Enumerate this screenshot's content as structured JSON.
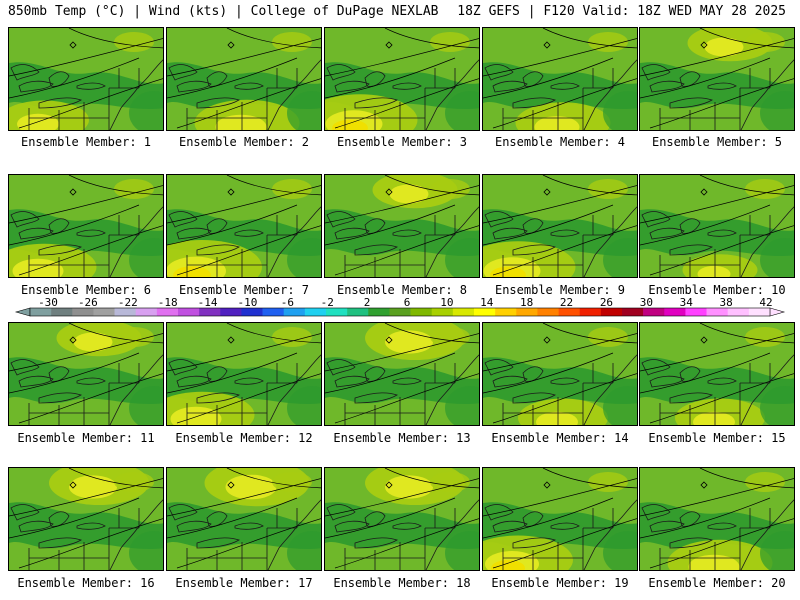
{
  "header": {
    "left": "850mb Temp (°C) | Wind (kts) | College of DuPage NEXLAB",
    "right": "18Z GEFS | F120 Valid: 18Z WED MAY 28 2025"
  },
  "panels": [
    {
      "label": "Ensemble Member: 1",
      "warmth": 0.3,
      "warm_spot": "southwest"
    },
    {
      "label": "Ensemble Member: 2",
      "warmth": 0.45,
      "warm_spot": "south"
    },
    {
      "label": "Ensemble Member: 3",
      "warmth": 0.55,
      "warm_spot": "southwest"
    },
    {
      "label": "Ensemble Member: 4",
      "warmth": 0.35,
      "warm_spot": "south"
    },
    {
      "label": "Ensemble Member: 5",
      "warmth": 0.25,
      "warm_spot": "north"
    },
    {
      "label": "Ensemble Member: 6",
      "warmth": 0.45,
      "warm_spot": "southwest"
    },
    {
      "label": "Ensemble Member: 7",
      "warmth": 0.6,
      "warm_spot": "southwest"
    },
    {
      "label": "Ensemble Member: 8",
      "warmth": 0.25,
      "warm_spot": "north"
    },
    {
      "label": "Ensemble Member: 9",
      "warmth": 0.55,
      "warm_spot": "southwest"
    },
    {
      "label": "Ensemble Member: 10",
      "warmth": 0.15,
      "warm_spot": "south"
    },
    {
      "label": "Ensemble Member: 11",
      "warmth": 0.25,
      "warm_spot": "north"
    },
    {
      "label": "Ensemble Member: 12",
      "warmth": 0.45,
      "warm_spot": "southwest"
    },
    {
      "label": "Ensemble Member: 13",
      "warmth": 0.4,
      "warm_spot": "north"
    },
    {
      "label": "Ensemble Member: 14",
      "warmth": 0.3,
      "warm_spot": "south"
    },
    {
      "label": "Ensemble Member: 15",
      "warmth": 0.3,
      "warm_spot": "south"
    },
    {
      "label": "Ensemble Member: 16",
      "warmth": 0.4,
      "warm_spot": "north"
    },
    {
      "label": "Ensemble Member: 17",
      "warmth": 0.45,
      "warm_spot": "north"
    },
    {
      "label": "Ensemble Member: 18",
      "warmth": 0.4,
      "warm_spot": "north"
    },
    {
      "label": "Ensemble Member: 19",
      "warmth": 0.5,
      "warm_spot": "southwest"
    },
    {
      "label": "Ensemble Member: 20",
      "warmth": 0.45,
      "warm_spot": "south"
    }
  ],
  "colorbar": {
    "ticks": [
      "-30",
      "-26",
      "-22",
      "-18",
      "-14",
      "-10",
      "-6",
      "-2",
      "2",
      "6",
      "10",
      "14",
      "18",
      "22",
      "26",
      "30",
      "34",
      "38",
      "42"
    ],
    "colors": [
      "#7f9f9f",
      "#6f7f7f",
      "#8f8f8f",
      "#a0a0a0",
      "#b8b8d8",
      "#d8a0f0",
      "#e070f0",
      "#c050e0",
      "#8030c0",
      "#5020c0",
      "#2030d0",
      "#2060f0",
      "#20a0f0",
      "#20d0f0",
      "#20e0c0",
      "#20c080",
      "#30a030",
      "#5aa020",
      "#7fb800",
      "#a8d000",
      "#d8e800",
      "#ffff00",
      "#ffd000",
      "#ffa800",
      "#ff8000",
      "#ff5000",
      "#f02000",
      "#c00000",
      "#a00020",
      "#c00080",
      "#e000c0",
      "#ff40ff",
      "#ff90ff",
      "#ffc0ff",
      "#ffe0ff"
    ]
  },
  "map_colors": {
    "cool": "#2e9a2e",
    "mid": "#6fb82a",
    "warm": "#a8cc12",
    "hot": "#e0e820",
    "hotter": "#f0e000",
    "cold_blue": "#1aa88a"
  }
}
